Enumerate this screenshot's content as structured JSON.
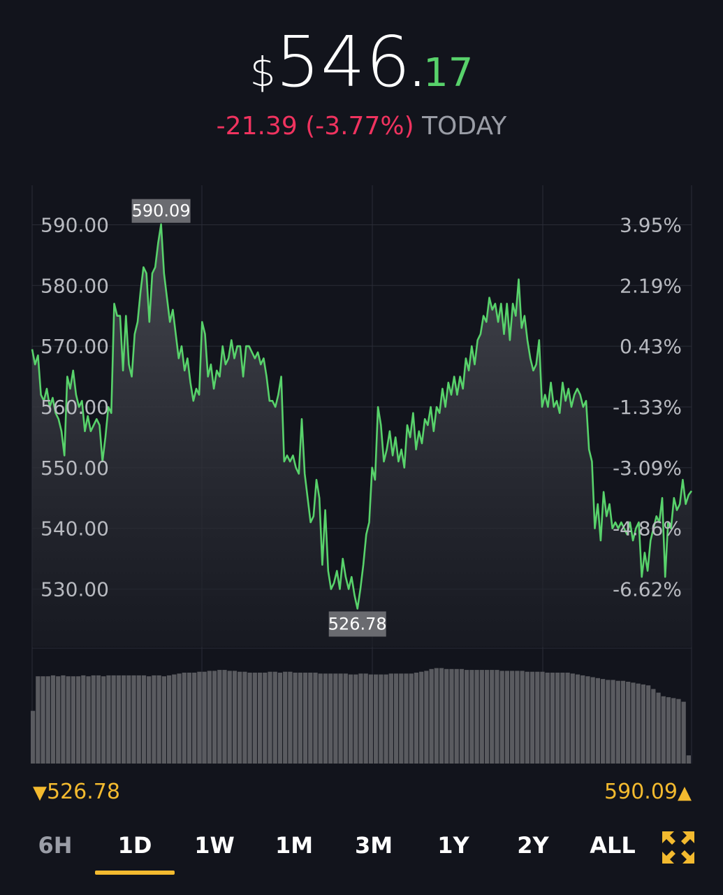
{
  "header": {
    "currency": "$",
    "price_int": "546",
    "price_dot": ".",
    "price_dec": "17",
    "change": "-21.39 (-3.77%)",
    "period": "TODAY"
  },
  "colors": {
    "background": "#12141c",
    "line": "#58d26b",
    "negative": "#f0335f",
    "accent": "#f3ba2f",
    "grid": "#2a2d37",
    "axis_text": "#b8bac0",
    "volume": "#5a5b60"
  },
  "range": {
    "low_icon": "down-triangle-icon",
    "low": "526.78",
    "high": "590.09",
    "high_icon": "up-triangle-icon",
    "low_glyph": "▼",
    "high_glyph": "▲"
  },
  "tabs": [
    {
      "label": "6H",
      "active": false
    },
    {
      "label": "1D",
      "active": true
    },
    {
      "label": "1W",
      "active": false
    },
    {
      "label": "1M",
      "active": false
    },
    {
      "label": "3M",
      "active": false
    },
    {
      "label": "1Y",
      "active": false
    },
    {
      "label": "2Y",
      "active": false
    },
    {
      "label": "ALL",
      "active": false
    }
  ],
  "expand_icon": "expand-arrows-icon",
  "chart_data": {
    "type": "area",
    "ylim": [
      520.5,
      596.5
    ],
    "left_axis_ticks": [
      "590.00",
      "580.00",
      "570.00",
      "560.00",
      "550.00",
      "540.00",
      "530.00"
    ],
    "left_axis_values": [
      590,
      580,
      570,
      560,
      550,
      540,
      530
    ],
    "right_axis_ticks": [
      "3.95%",
      "2.19%",
      "0.43%",
      "-1.33%",
      "-3.09%",
      "-4.86%",
      "-6.62%"
    ],
    "high_label": "590.09",
    "low_label": "526.78",
    "grid": true,
    "series": [
      {
        "values": [
          569.5,
          567,
          568.5,
          562,
          561,
          563,
          560,
          561.5,
          559,
          558,
          556,
          552,
          565,
          563,
          566,
          562,
          560,
          561,
          556,
          558.5,
          556,
          557,
          558,
          557,
          551,
          555,
          560,
          559,
          577,
          575,
          575,
          566,
          575,
          567,
          565,
          572,
          574,
          579,
          583,
          582,
          574,
          582,
          583,
          587,
          590.09,
          582,
          578,
          574,
          576,
          572,
          568,
          570,
          566,
          568,
          564,
          561,
          563,
          562,
          574,
          572,
          565,
          567,
          563,
          566,
          565,
          570,
          567,
          568,
          571,
          568,
          570,
          570,
          565,
          570,
          570,
          569,
          568,
          569,
          567,
          568,
          565,
          561,
          561,
          560,
          562,
          565,
          551,
          552,
          551,
          552,
          550,
          549,
          558,
          549,
          545,
          541,
          542,
          548,
          545,
          534,
          543,
          533,
          530,
          531,
          533,
          530,
          535,
          532,
          530,
          532,
          529,
          526.78,
          530,
          534,
          539,
          541,
          550,
          548,
          560,
          557,
          551,
          553,
          556,
          552,
          555,
          551,
          553,
          550,
          557,
          555,
          559,
          553,
          556,
          554,
          558,
          557,
          560,
          556,
          560,
          559,
          563,
          560,
          564,
          562,
          565,
          562,
          565,
          563,
          568,
          566,
          570,
          567,
          571,
          572,
          575,
          574,
          578,
          576,
          577,
          574,
          577,
          572,
          577,
          571,
          577,
          575,
          581,
          573,
          575,
          571,
          568,
          566,
          567,
          571,
          560,
          562,
          560,
          564,
          560,
          561,
          559,
          564,
          561,
          563,
          560,
          562,
          563,
          562,
          560,
          561,
          553,
          551,
          540,
          544,
          538,
          546,
          542,
          544,
          540,
          541,
          540,
          541,
          540,
          539,
          541,
          538,
          540,
          541,
          532,
          536,
          533,
          538,
          540,
          542,
          541,
          545,
          532,
          541,
          540,
          545,
          543,
          544,
          548,
          544,
          545.5,
          546.17
        ]
      }
    ],
    "volume_heights": [
      0.58,
      0.96,
      0.96,
      0.96,
      0.97,
      0.96,
      0.97,
      0.96,
      0.96,
      0.96,
      0.97,
      0.96,
      0.97,
      0.97,
      0.96,
      0.97,
      0.97,
      0.97,
      0.97,
      0.97,
      0.97,
      0.97,
      0.97,
      0.96,
      0.97,
      0.97,
      0.96,
      0.97,
      0.98,
      0.99,
      1.0,
      1.0,
      1.0,
      1.01,
      1.01,
      1.02,
      1.02,
      1.03,
      1.03,
      1.02,
      1.02,
      1.01,
      1.01,
      1.0,
      1.0,
      1.0,
      1.0,
      1.01,
      1.01,
      1.0,
      1.01,
      1.01,
      1.0,
      1.0,
      1.0,
      1.0,
      1.0,
      0.99,
      0.99,
      0.99,
      0.99,
      0.99,
      0.99,
      0.98,
      0.98,
      0.99,
      0.99,
      0.98,
      0.98,
      0.98,
      0.98,
      0.99,
      0.99,
      0.99,
      0.99,
      0.99,
      1.0,
      1.01,
      1.02,
      1.04,
      1.05,
      1.05,
      1.04,
      1.04,
      1.04,
      1.04,
      1.03,
      1.03,
      1.03,
      1.03,
      1.03,
      1.03,
      1.03,
      1.02,
      1.02,
      1.02,
      1.02,
      1.02,
      1.01,
      1.01,
      1.01,
      1.01,
      1.0,
      1.0,
      1.0,
      1.0,
      1.0,
      0.99,
      0.98,
      0.97,
      0.96,
      0.95,
      0.94,
      0.93,
      0.92,
      0.92,
      0.91,
      0.91,
      0.9,
      0.89,
      0.88,
      0.87,
      0.86,
      0.82,
      0.78,
      0.74,
      0.73,
      0.72,
      0.71,
      0.68,
      0.09
    ]
  }
}
